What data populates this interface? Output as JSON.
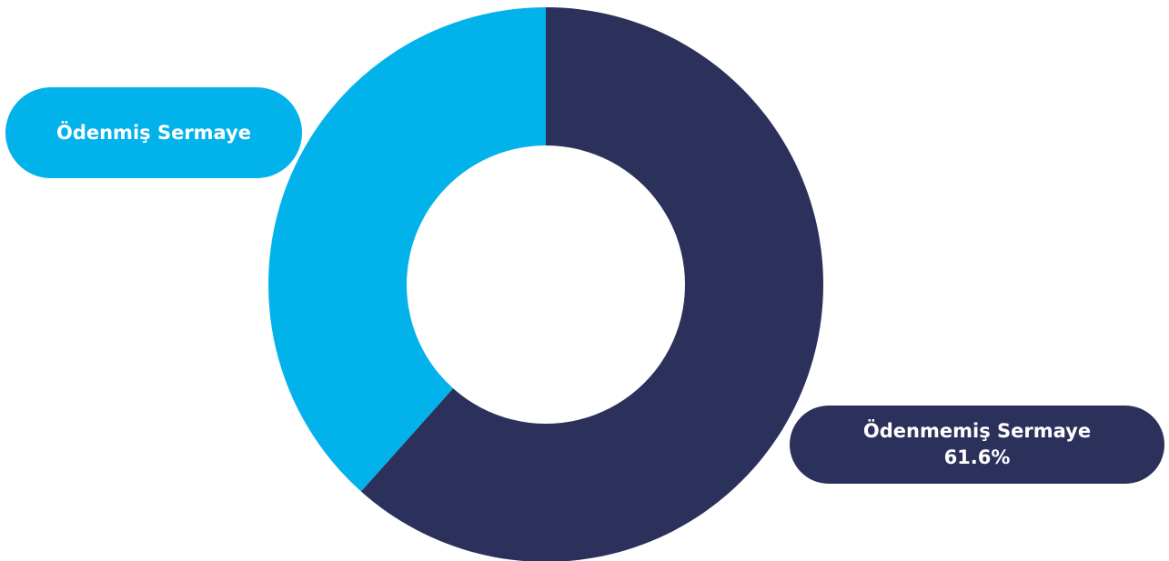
{
  "chart_data": {
    "type": "pie",
    "donut": true,
    "slices": [
      {
        "label": "Ödenmemiş Sermaye",
        "value": 61.6,
        "value_label": "61.6%",
        "color": "#2c315c"
      },
      {
        "label": "Ödenmiş Sermaye",
        "value": 38.4,
        "value_label": "",
        "color": "#02b2ea"
      }
    ],
    "start_angle_deg": 0,
    "direction": "clockwise",
    "title": "",
    "legend": "none"
  },
  "labels": {
    "paid": "Ödenmiş Sermaye",
    "unpaid": "Ödenmemiş Sermaye",
    "unpaid_value": "61.6%"
  }
}
